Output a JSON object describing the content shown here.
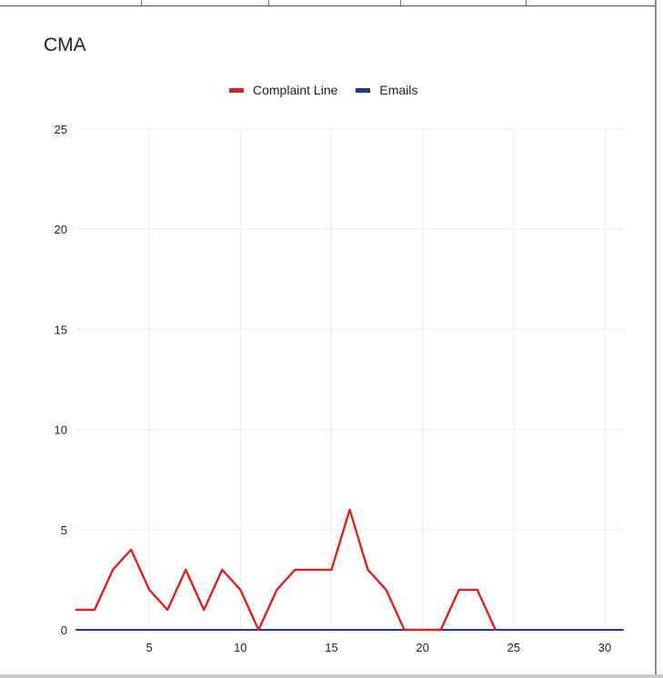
{
  "chart_data": {
    "type": "line",
    "title": "CMA",
    "xlabel": "",
    "ylabel": "",
    "x": [
      1,
      2,
      3,
      4,
      5,
      6,
      7,
      8,
      9,
      10,
      11,
      12,
      13,
      14,
      15,
      16,
      17,
      18,
      19,
      20,
      21,
      22,
      23,
      24,
      25,
      26,
      27,
      28,
      29,
      30,
      31
    ],
    "xlim": [
      1,
      31
    ],
    "ylim": [
      0,
      25
    ],
    "x_ticks": [
      5,
      10,
      15,
      20,
      25,
      30
    ],
    "y_ticks": [
      0,
      5,
      10,
      15,
      20,
      25
    ],
    "grid": true,
    "legend_position": "top",
    "series": [
      {
        "name": "Complaint Line",
        "color": "#d42424",
        "values": [
          1,
          1,
          3,
          4,
          2,
          1,
          3,
          1,
          3,
          2,
          0,
          2,
          3,
          3,
          3,
          6,
          3,
          2,
          0,
          0,
          0,
          2,
          2,
          0,
          null,
          null,
          null,
          null,
          null,
          null,
          null
        ]
      },
      {
        "name": "Emails",
        "color": "#23398f",
        "values": [
          0,
          0,
          0,
          0,
          0,
          0,
          0,
          0,
          0,
          0,
          0,
          0,
          0,
          0,
          0,
          0,
          0,
          0,
          0,
          0,
          0,
          0,
          0,
          0,
          0,
          0,
          0,
          0,
          0,
          0,
          0
        ]
      }
    ]
  }
}
